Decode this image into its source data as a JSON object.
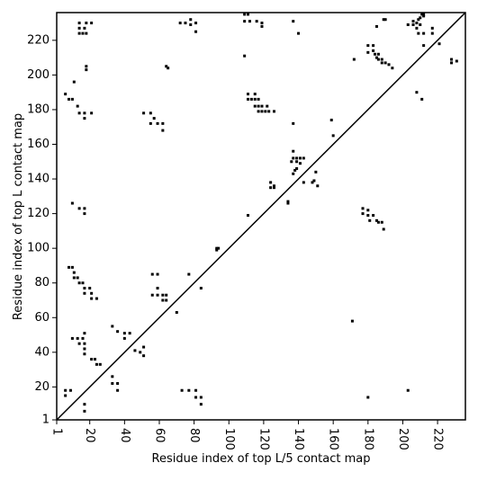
{
  "chart_data": {
    "type": "scatter",
    "xlabel": "Residue index of top L/5 contact map",
    "ylabel": "Residue index of top L contact map",
    "xlim": [
      1,
      236
    ],
    "ylim": [
      1,
      236
    ],
    "xticks": [
      1,
      20,
      40,
      60,
      80,
      100,
      120,
      140,
      160,
      180,
      200,
      220
    ],
    "yticks": [
      1,
      20,
      40,
      60,
      80,
      100,
      120,
      140,
      160,
      180,
      200,
      220
    ],
    "diagonal": true,
    "series": [
      {
        "color": "#000000",
        "x": [
          14,
          14,
          14,
          16,
          17,
          18,
          18,
          21,
          18,
          18,
          11,
          6,
          8,
          10,
          13,
          17,
          17,
          14,
          21,
          10,
          14,
          17,
          17,
          8,
          10,
          11,
          11,
          13,
          14,
          16,
          17,
          17,
          20,
          21,
          21,
          24,
          10,
          13,
          16,
          17,
          17,
          14,
          17,
          17,
          21,
          23,
          24,
          26,
          6,
          6,
          9,
          17,
          17,
          33,
          36,
          40,
          43,
          40,
          46,
          49,
          51,
          51,
          33,
          33,
          36,
          36,
          51,
          55,
          57,
          59,
          62,
          62,
          55,
          64,
          65,
          72,
          75,
          78,
          78,
          81,
          81,
          56,
          59,
          59,
          56,
          59,
          62,
          64,
          62,
          64,
          70,
          77,
          84,
          73,
          77,
          81,
          81,
          84,
          84,
          93,
          94,
          93,
          109,
          111,
          109,
          112,
          116,
          119,
          119,
          109,
          111,
          111,
          113,
          115,
          115,
          117,
          119,
          119,
          121,
          122,
          123,
          115,
          117,
          126,
          117,
          111,
          124,
          126,
          124,
          126,
          134,
          134,
          137,
          140,
          137,
          137,
          137,
          136,
          139,
          139,
          141,
          141,
          143,
          138,
          139,
          137,
          143,
          148,
          149,
          150,
          151,
          159,
          160,
          172,
          171,
          177,
          177,
          180,
          180,
          181,
          183,
          185,
          186,
          188,
          189,
          180,
          180,
          183,
          183,
          184,
          185,
          186,
          186,
          188,
          188,
          190,
          192,
          194,
          185,
          189,
          190,
          180,
          203,
          203,
          206,
          208,
          209,
          210,
          210,
          212,
          211,
          206,
          208,
          212,
          209,
          212,
          217,
          217,
          221,
          212,
          208,
          211,
          228,
          228,
          231
        ],
        "values": [
          230,
          227,
          224,
          224,
          227,
          230,
          224,
          230,
          205,
          203,
          196,
          189,
          186,
          186,
          182,
          178,
          175,
          178,
          178,
          126,
          123,
          123,
          120,
          89,
          89,
          86,
          83,
          83,
          80,
          80,
          77,
          74,
          77,
          74,
          71,
          71,
          48,
          48,
          48,
          51,
          45,
          45,
          42,
          39,
          36,
          36,
          33,
          33,
          18,
          15,
          18,
          10,
          6,
          55,
          52,
          51,
          51,
          48,
          41,
          40,
          43,
          38,
          26,
          22,
          22,
          18,
          178,
          178,
          175,
          172,
          172,
          168,
          172,
          205,
          204,
          230,
          230,
          232,
          229,
          230,
          225,
          85,
          85,
          77,
          73,
          73,
          73,
          73,
          70,
          70,
          63,
          85,
          77,
          18,
          18,
          18,
          14,
          14,
          10,
          100,
          100,
          99,
          235,
          235,
          231,
          231,
          231,
          230,
          228,
          211,
          189,
          186,
          186,
          189,
          186,
          182,
          182,
          179,
          179,
          182,
          179,
          182,
          179,
          179,
          186,
          119,
          138,
          136,
          135,
          135,
          127,
          126,
          231,
          224,
          172,
          156,
          152,
          150,
          150,
          152,
          152,
          149,
          152,
          145,
          146,
          143,
          138,
          138,
          139,
          144,
          136,
          174,
          165,
          209,
          58,
          123,
          120,
          122,
          119,
          116,
          119,
          116,
          115,
          115,
          111,
          217,
          213,
          217,
          214,
          212,
          210,
          212,
          209,
          209,
          207,
          207,
          206,
          204,
          228,
          232,
          232,
          14,
          18,
          229,
          229,
          230,
          232,
          233,
          229,
          235,
          235,
          231,
          227,
          234,
          224,
          224,
          227,
          224,
          218,
          217,
          190,
          186,
          209,
          207,
          208
        ]
      }
    ]
  }
}
